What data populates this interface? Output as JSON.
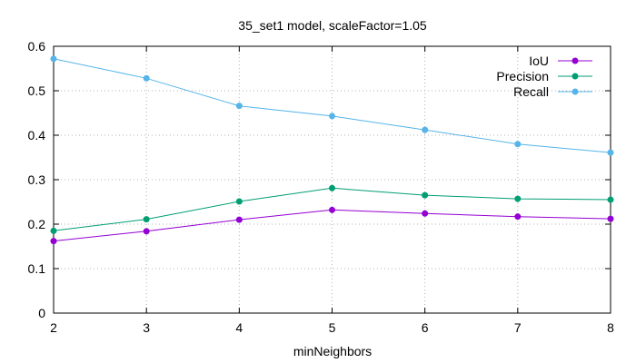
{
  "chart_data": {
    "type": "line",
    "title": "35_set1 model, scaleFactor=1.05",
    "xlabel": "minNeighbors",
    "ylabel": "",
    "xlim": [
      2,
      8
    ],
    "ylim": [
      0,
      0.6
    ],
    "x": [
      2,
      3,
      4,
      5,
      6,
      7,
      8
    ],
    "xticks": [
      "2",
      "3",
      "4",
      "5",
      "6",
      "7",
      "8"
    ],
    "yticks": [
      "0",
      "0.1",
      "0.2",
      "0.3",
      "0.4",
      "0.5",
      "0.6"
    ],
    "grid": true,
    "legend_position": "top-right",
    "series": [
      {
        "name": "IoU",
        "color": "#9400d3",
        "values": [
          0.162,
          0.184,
          0.21,
          0.232,
          0.224,
          0.217,
          0.212
        ]
      },
      {
        "name": "Precision",
        "color": "#009e73",
        "values": [
          0.185,
          0.211,
          0.251,
          0.281,
          0.265,
          0.257,
          0.255
        ]
      },
      {
        "name": "Recall",
        "color": "#56b4e9",
        "values": [
          0.572,
          0.528,
          0.466,
          0.443,
          0.412,
          0.38,
          0.361
        ]
      }
    ]
  }
}
